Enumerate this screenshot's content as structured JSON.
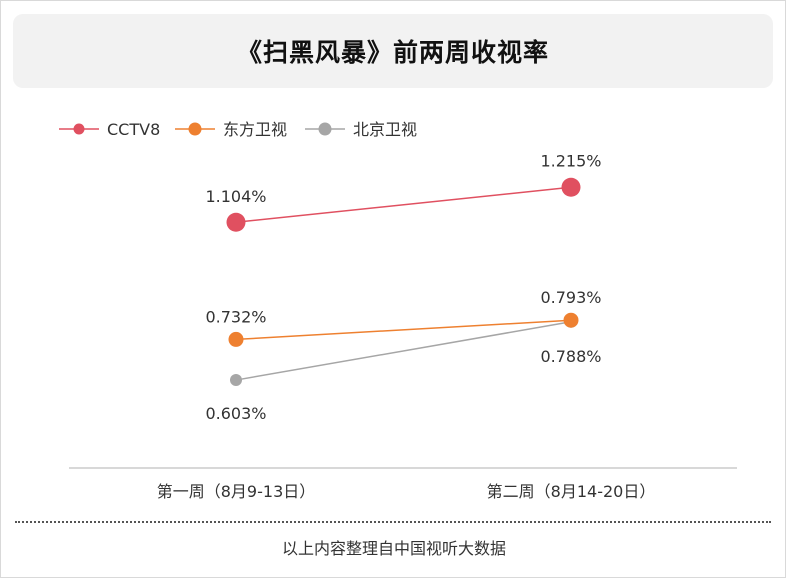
{
  "title": "《扫黑风暴》前两周收视率",
  "footer": "以上内容整理自中国视听大数据",
  "chart_data": {
    "type": "line",
    "categories": [
      "第一周（8月9-13日）",
      "第二周（8月14-20日）"
    ],
    "ylim": [
      0.4,
      1.4
    ],
    "legend": "top-left",
    "grid": false,
    "series": [
      {
        "name": "CCTV8",
        "values": [
          1.104,
          1.215
        ],
        "labels": [
          "1.104%",
          "1.215%"
        ],
        "color": "#e05060"
      },
      {
        "name": "东方卫视",
        "values": [
          0.732,
          0.793
        ],
        "labels": [
          "0.732%",
          "0.793%"
        ],
        "color": "#ee8030"
      },
      {
        "name": "北京卫视",
        "values": [
          0.603,
          0.788
        ],
        "labels": [
          "0.603%",
          "0.788%"
        ],
        "color": "#a6a6a6"
      }
    ]
  }
}
